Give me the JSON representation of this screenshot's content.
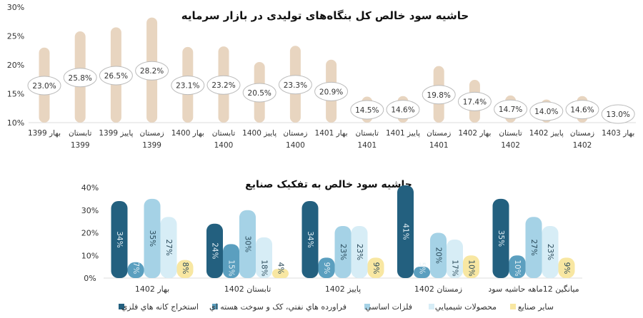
{
  "chart_data": [
    {
      "type": "bar",
      "title": "حاشیه سود خالص کل بنگاه‌های تولیدی در بازار سرمایه",
      "ylim": [
        10,
        30
      ],
      "yticks": [
        "10%",
        "15%",
        "20%",
        "25%",
        "30%"
      ],
      "ytick_values": [
        10,
        15,
        20,
        25,
        30
      ],
      "categories": [
        [
          "بهار 1399",
          ""
        ],
        [
          "تابستان",
          "1399"
        ],
        [
          "پاییز 1399",
          ""
        ],
        [
          "زمستان",
          "1399"
        ],
        [
          "بهار 1400",
          ""
        ],
        [
          "تابستان",
          "1400"
        ],
        [
          "پاییز 1400",
          ""
        ],
        [
          "زمستان",
          "1400"
        ],
        [
          "بهار 1401",
          ""
        ],
        [
          "تابستان",
          "1401"
        ],
        [
          "پاییز 1401",
          ""
        ],
        [
          "زمستان",
          "1401"
        ],
        [
          "بهار 1402",
          ""
        ],
        [
          "تابستان",
          "1402"
        ],
        [
          "پاییز 1402",
          ""
        ],
        [
          "زمستان",
          "1402"
        ],
        [
          "بهار 1403",
          ""
        ]
      ],
      "values": [
        23.0,
        25.8,
        26.5,
        28.2,
        23.1,
        23.2,
        20.5,
        23.3,
        20.9,
        14.5,
        14.6,
        19.8,
        17.4,
        14.7,
        14.0,
        14.6,
        13.0
      ],
      "data_labels": [
        "23.0%",
        "25.8%",
        "26.5%",
        "28.2%",
        "23.1%",
        "23.2%",
        "20.5%",
        "23.3%",
        "20.9%",
        "14.5%",
        "14.6%",
        "19.8%",
        "17.4%",
        "14.7%",
        "14.0%",
        "14.6%",
        "13.0%"
      ],
      "color": "#e8d5c0",
      "grid": false
    },
    {
      "type": "bar",
      "title": "حاشیه سود خالص به تفکیک صنایع",
      "ylim": [
        0,
        40
      ],
      "yticks": [
        "0%",
        "10%",
        "20%",
        "30%",
        "40%"
      ],
      "ytick_values": [
        0,
        10,
        20,
        30,
        40
      ],
      "categories": [
        "بهار 1402",
        "تابستان 1402",
        "پاییز 1402",
        "زمستان 1402",
        "میانگین 12ماهه حاشیه سود"
      ],
      "series": [
        {
          "name": "استخراج كانه هاي فلزي",
          "color": "#23607f",
          "values": [
            34,
            24,
            34,
            41,
            35
          ],
          "labels": [
            "34%",
            "24%",
            "34%",
            "41%",
            "35%"
          ]
        },
        {
          "name": "فراورده هاي نفتي، كک و سوخت هسته اي",
          "color": "#5b9fbf",
          "values": [
            7,
            15,
            9,
            5,
            10
          ],
          "labels": [
            "7%",
            "15%",
            "9%",
            "5%",
            "10%"
          ]
        },
        {
          "name": "فلزات اساسي",
          "color": "#a5d2e6",
          "values": [
            35,
            30,
            23,
            20,
            27
          ],
          "labels": [
            "35%",
            "30%",
            "23%",
            "20%",
            "27%"
          ]
        },
        {
          "name": "محصولات شيميايي",
          "color": "#d7edf6",
          "values": [
            27,
            18,
            23,
            17,
            23
          ],
          "labels": [
            "27%",
            "18%",
            "23%",
            "17%",
            "23%"
          ]
        },
        {
          "name": "ساير صنايع",
          "color": "#f8e7a2",
          "values": [
            8,
            4,
            9,
            10,
            9
          ],
          "labels": [
            "8%",
            "4%",
            "9%",
            "10%",
            "9%"
          ]
        }
      ],
      "legend": "bottom",
      "grid": false
    }
  ]
}
